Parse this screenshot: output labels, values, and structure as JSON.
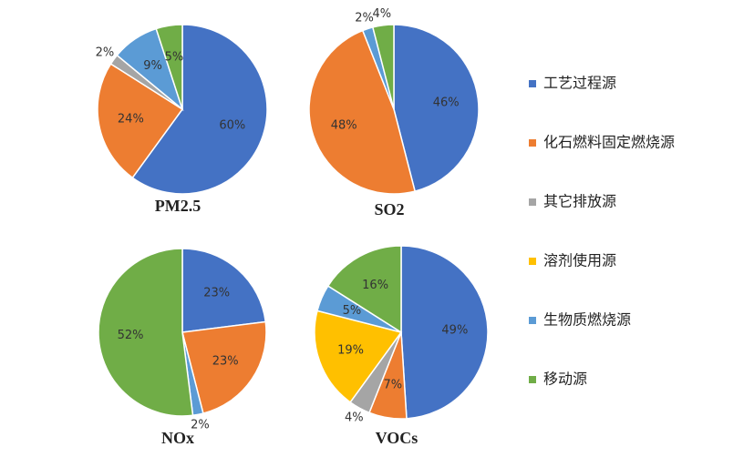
{
  "legend": {
    "entries": [
      {
        "name": "工艺过程源",
        "color": "#4472c4"
      },
      {
        "name": "化石燃料固定燃烧源",
        "color": "#ed7d31"
      },
      {
        "name": "其它排放源",
        "color": "#a5a5a5"
      },
      {
        "name": "溶剂使用源",
        "color": "#ffc000"
      },
      {
        "name": "生物质燃烧源",
        "color": "#5b9bd5"
      },
      {
        "name": "移动源",
        "color": "#70ad47"
      }
    ]
  },
  "chart_data": [
    {
      "type": "pie",
      "title": "PM2.5",
      "categories": [
        "工艺过程源",
        "化石燃料固定燃烧源",
        "其它排放源",
        "生物质燃烧源",
        "移动源"
      ],
      "values": [
        60,
        24,
        2,
        9,
        5
      ],
      "value_labels": [
        "60%",
        "24%",
        "2%",
        "9%",
        "5%"
      ]
    },
    {
      "type": "pie",
      "title": "SO2",
      "categories": [
        "工艺过程源",
        "化石燃料固定燃烧源",
        "生物质燃烧源",
        "移动源"
      ],
      "values": [
        46,
        48,
        2,
        4
      ],
      "value_labels": [
        "46%",
        "48%",
        "2%",
        "4%"
      ]
    },
    {
      "type": "pie",
      "title": "NOx",
      "categories": [
        "工艺过程源",
        "化石燃料固定燃烧源",
        "生物质燃烧源",
        "移动源"
      ],
      "values": [
        23,
        23,
        2,
        52
      ],
      "value_labels": [
        "23%",
        "23%",
        "2%",
        "52%"
      ]
    },
    {
      "type": "pie",
      "title": "VOCs",
      "categories": [
        "工艺过程源",
        "化石燃料固定燃烧源",
        "其它排放源",
        "溶剂使用源",
        "生物质燃烧源",
        "移动源"
      ],
      "values": [
        49,
        7,
        4,
        19,
        5,
        16
      ],
      "value_labels": [
        "49%",
        "7%",
        "4%",
        "19%",
        "5%",
        "16%"
      ]
    }
  ]
}
